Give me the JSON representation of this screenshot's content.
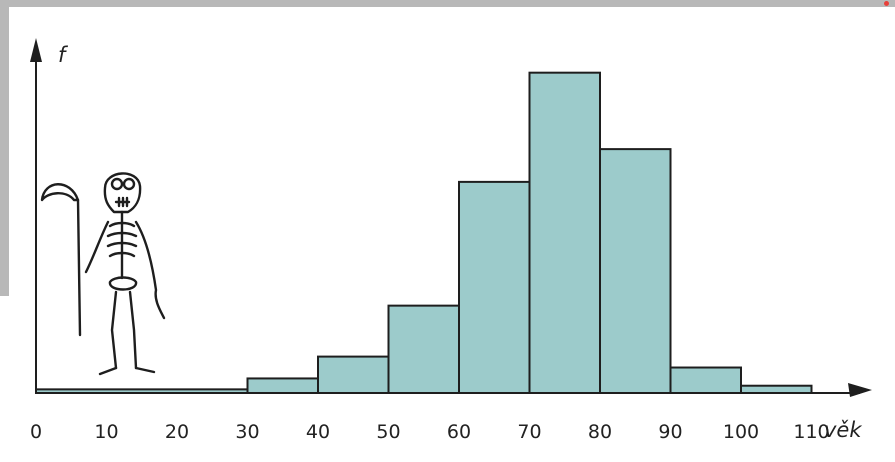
{
  "chart_data": {
    "type": "bar",
    "title": "",
    "xlabel": "věk",
    "ylabel": "f",
    "bins": [
      [
        0,
        30
      ],
      [
        30,
        40
      ],
      [
        40,
        50
      ],
      [
        50,
        60
      ],
      [
        60,
        70
      ],
      [
        70,
        80
      ],
      [
        80,
        90
      ],
      [
        90,
        100
      ],
      [
        100,
        110
      ]
    ],
    "values": [
      1,
      4,
      10,
      24,
      58,
      88,
      67,
      7,
      2
    ],
    "ticks": [
      "0",
      "10",
      "20",
      "30",
      "40",
      "50",
      "60",
      "70",
      "80",
      "90",
      "100",
      "110"
    ],
    "xlim": [
      0,
      118
    ],
    "ylim": [
      0,
      100
    ],
    "grid": false,
    "colors": {
      "bar": "#9ccbcb",
      "outline": "#1e1e1e"
    }
  }
}
